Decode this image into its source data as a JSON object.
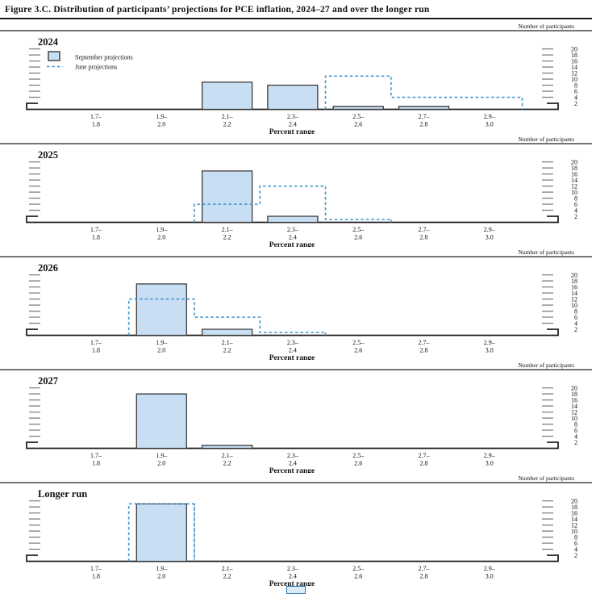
{
  "title": "Figure 3.C. Distribution of participants’ projections for PCE inflation, 2024–27 and over the longer run",
  "legend": {
    "september_label": "September projections",
    "june_label": "June projections"
  },
  "axis": {
    "right_axis_label": "Number of participants",
    "x_axis_label": "Percent range",
    "y_ticks": [
      20,
      18,
      16,
      14,
      12,
      10,
      8,
      6,
      4,
      2
    ],
    "ylim": [
      0,
      20
    ],
    "bin_labels": [
      [
        "1.7–",
        "1.8"
      ],
      [
        "1.9–",
        "2.0"
      ],
      [
        "2.1–",
        "2.2"
      ],
      [
        "2.3–",
        "2.4"
      ],
      [
        "2.5–",
        "2.6"
      ],
      [
        "2.7–",
        "2.8"
      ],
      [
        "2.9–",
        "3.0"
      ]
    ]
  },
  "colors": {
    "bar_fill": "#c8def2",
    "bar_border": "#3a3a3a",
    "june_dash": "#3e96ce",
    "axis_line": "#222222",
    "tick_gray": "#808080",
    "text": "#111111"
  },
  "chart_data": [
    {
      "type": "bar",
      "title": "2024",
      "categories": [
        "1.7–1.8",
        "1.9–2.0",
        "2.1–2.2",
        "2.3–2.4",
        "2.5–2.6",
        "2.7–2.8",
        "2.9–3.0"
      ],
      "ylim": [
        0,
        20
      ],
      "has_legend": true,
      "series": [
        {
          "name": "September projections",
          "style": "bar",
          "values": [
            0,
            0,
            9,
            8,
            1,
            1,
            0
          ]
        },
        {
          "name": "June projections",
          "style": "dashed-step",
          "values": [
            0,
            0,
            0,
            0,
            11,
            4,
            4
          ]
        }
      ]
    },
    {
      "type": "bar",
      "title": "2025",
      "categories": [
        "1.7–1.8",
        "1.9–2.0",
        "2.1–2.2",
        "2.3–2.4",
        "2.5–2.6",
        "2.7–2.8",
        "2.9–3.0"
      ],
      "ylim": [
        0,
        20
      ],
      "has_legend": false,
      "series": [
        {
          "name": "September projections",
          "style": "bar",
          "values": [
            0,
            0,
            17,
            2,
            0,
            0,
            0
          ]
        },
        {
          "name": "June projections",
          "style": "dashed-step",
          "values": [
            0,
            0,
            6,
            12,
            1,
            0,
            0
          ]
        }
      ]
    },
    {
      "type": "bar",
      "title": "2026",
      "categories": [
        "1.7–1.8",
        "1.9–2.0",
        "2.1–2.2",
        "2.3–2.4",
        "2.5–2.6",
        "2.7–2.8",
        "2.9–3.0"
      ],
      "ylim": [
        0,
        20
      ],
      "has_legend": false,
      "series": [
        {
          "name": "September projections",
          "style": "bar",
          "values": [
            0,
            17,
            2,
            0,
            0,
            0,
            0
          ]
        },
        {
          "name": "June projections",
          "style": "dashed-step",
          "values": [
            0,
            12,
            6,
            1,
            0,
            0,
            0
          ]
        }
      ]
    },
    {
      "type": "bar",
      "title": "2027",
      "categories": [
        "1.7–1.8",
        "1.9–2.0",
        "2.1–2.2",
        "2.3–2.4",
        "2.5–2.6",
        "2.7–2.8",
        "2.9–3.0"
      ],
      "ylim": [
        0,
        20
      ],
      "has_legend": false,
      "series": [
        {
          "name": "September projections",
          "style": "bar",
          "values": [
            0,
            18,
            1,
            0,
            0,
            0,
            0
          ]
        },
        {
          "name": "June projections",
          "style": "dashed-step",
          "values": null
        }
      ]
    },
    {
      "type": "bar",
      "title": "Longer run",
      "categories": [
        "1.7–1.8",
        "1.9–2.0",
        "2.1–2.2",
        "2.3–2.4",
        "2.5–2.6",
        "2.7–2.8",
        "2.9–3.0"
      ],
      "ylim": [
        0,
        20
      ],
      "has_legend": false,
      "series": [
        {
          "name": "September projections",
          "style": "bar",
          "values": [
            0,
            19,
            0,
            0,
            0,
            0,
            0
          ]
        },
        {
          "name": "June projections",
          "style": "dashed-step",
          "values": [
            0,
            19,
            0,
            0,
            0,
            0,
            0
          ]
        }
      ]
    }
  ]
}
